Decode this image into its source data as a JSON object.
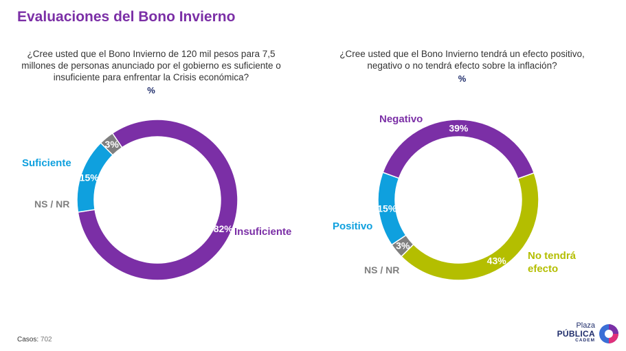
{
  "title": "Evaluaciones del Bono Invierno",
  "colors": {
    "purple": "#7b2fa6",
    "blue": "#0fa0de",
    "gray": "#7f7f7f",
    "olive": "#b4be00",
    "navy": "#1f2d6b"
  },
  "chart_data": [
    {
      "type": "pie",
      "title": "¿Cree usted que el Bono Invierno de 120 mil pesos para 7,5 millones de personas anunciado por el gobierno es suficiente o insuficiente para enfrentar la Crisis económica?",
      "unit": "%",
      "categories": [
        "Insuficiente",
        "Suficiente",
        "NS / NR"
      ],
      "values": [
        82,
        15,
        3
      ],
      "value_labels": [
        "82%",
        "15%",
        "3%"
      ],
      "series_colors": [
        "#7b2fa6",
        "#0fa0de",
        "#7f7f7f"
      ]
    },
    {
      "type": "pie",
      "title": "¿Cree usted que el Bono Invierno tendrá un efecto positivo, negativo o no tendrá efecto sobre la inflación?",
      "unit": "%",
      "categories": [
        "Negativo",
        "No tendrá efecto",
        "NS / NR",
        "Positivo"
      ],
      "values": [
        39,
        43,
        3,
        15
      ],
      "value_labels": [
        "39%",
        "43%",
        "3%",
        "15%"
      ],
      "series_colors": [
        "#7b2fa6",
        "#b4be00",
        "#7f7f7f",
        "#0fa0de"
      ]
    }
  ],
  "footer": {
    "casos_label": "Casos",
    "casos_value": "702"
  },
  "logo": {
    "line1": "Plaza",
    "line2": "PÚBLICA",
    "line3": "CADEM"
  }
}
